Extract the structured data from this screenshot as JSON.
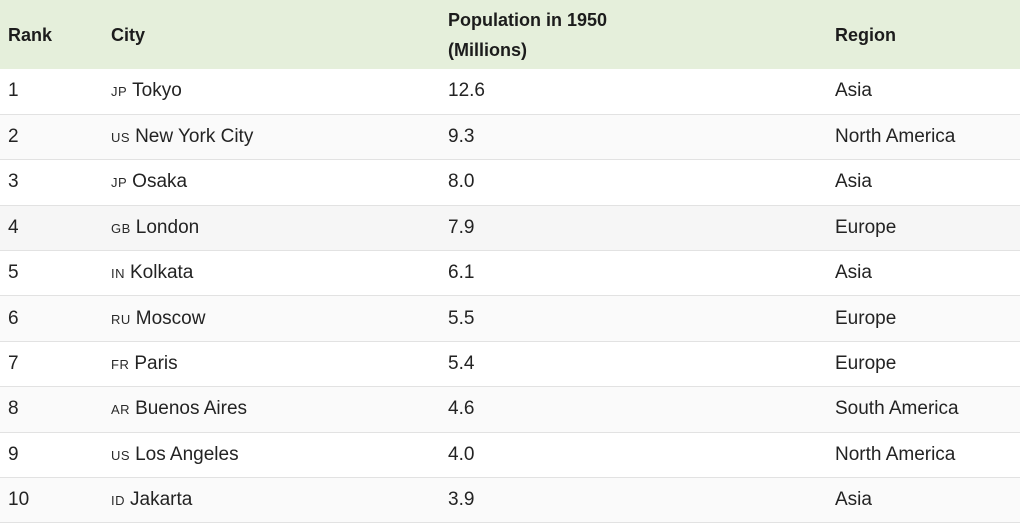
{
  "table": {
    "headers": {
      "rank": "Rank",
      "city": "City",
      "population_line1": "Population in 1950",
      "population_line2": "(Millions)",
      "region": "Region"
    },
    "rows": [
      {
        "rank": "1",
        "code": "JP",
        "city": "Tokyo",
        "population": "12.6",
        "region": "Asia"
      },
      {
        "rank": "2",
        "code": "US",
        "city": "New York City",
        "population": "9.3",
        "region": "North America"
      },
      {
        "rank": "3",
        "code": "JP",
        "city": "Osaka",
        "population": "8.0",
        "region": "Asia"
      },
      {
        "rank": "4",
        "code": "GB",
        "city": "London",
        "population": "7.9",
        "region": "Europe"
      },
      {
        "rank": "5",
        "code": "IN",
        "city": "Kolkata",
        "population": "6.1",
        "region": "Asia"
      },
      {
        "rank": "6",
        "code": "RU",
        "city": "Moscow",
        "population": "5.5",
        "region": "Europe"
      },
      {
        "rank": "7",
        "code": "FR",
        "city": "Paris",
        "population": "5.4",
        "region": "Europe"
      },
      {
        "rank": "8",
        "code": "AR",
        "city": "Buenos Aires",
        "population": "4.6",
        "region": "South America"
      },
      {
        "rank": "9",
        "code": "US",
        "city": "Los Angeles",
        "population": "4.0",
        "region": "North America"
      },
      {
        "rank": "10",
        "code": "ID",
        "city": "Jakarta",
        "population": "3.9",
        "region": "Asia"
      }
    ]
  },
  "colors": {
    "header_background": "#e5efdb",
    "row_border": "#e2e2e2"
  }
}
